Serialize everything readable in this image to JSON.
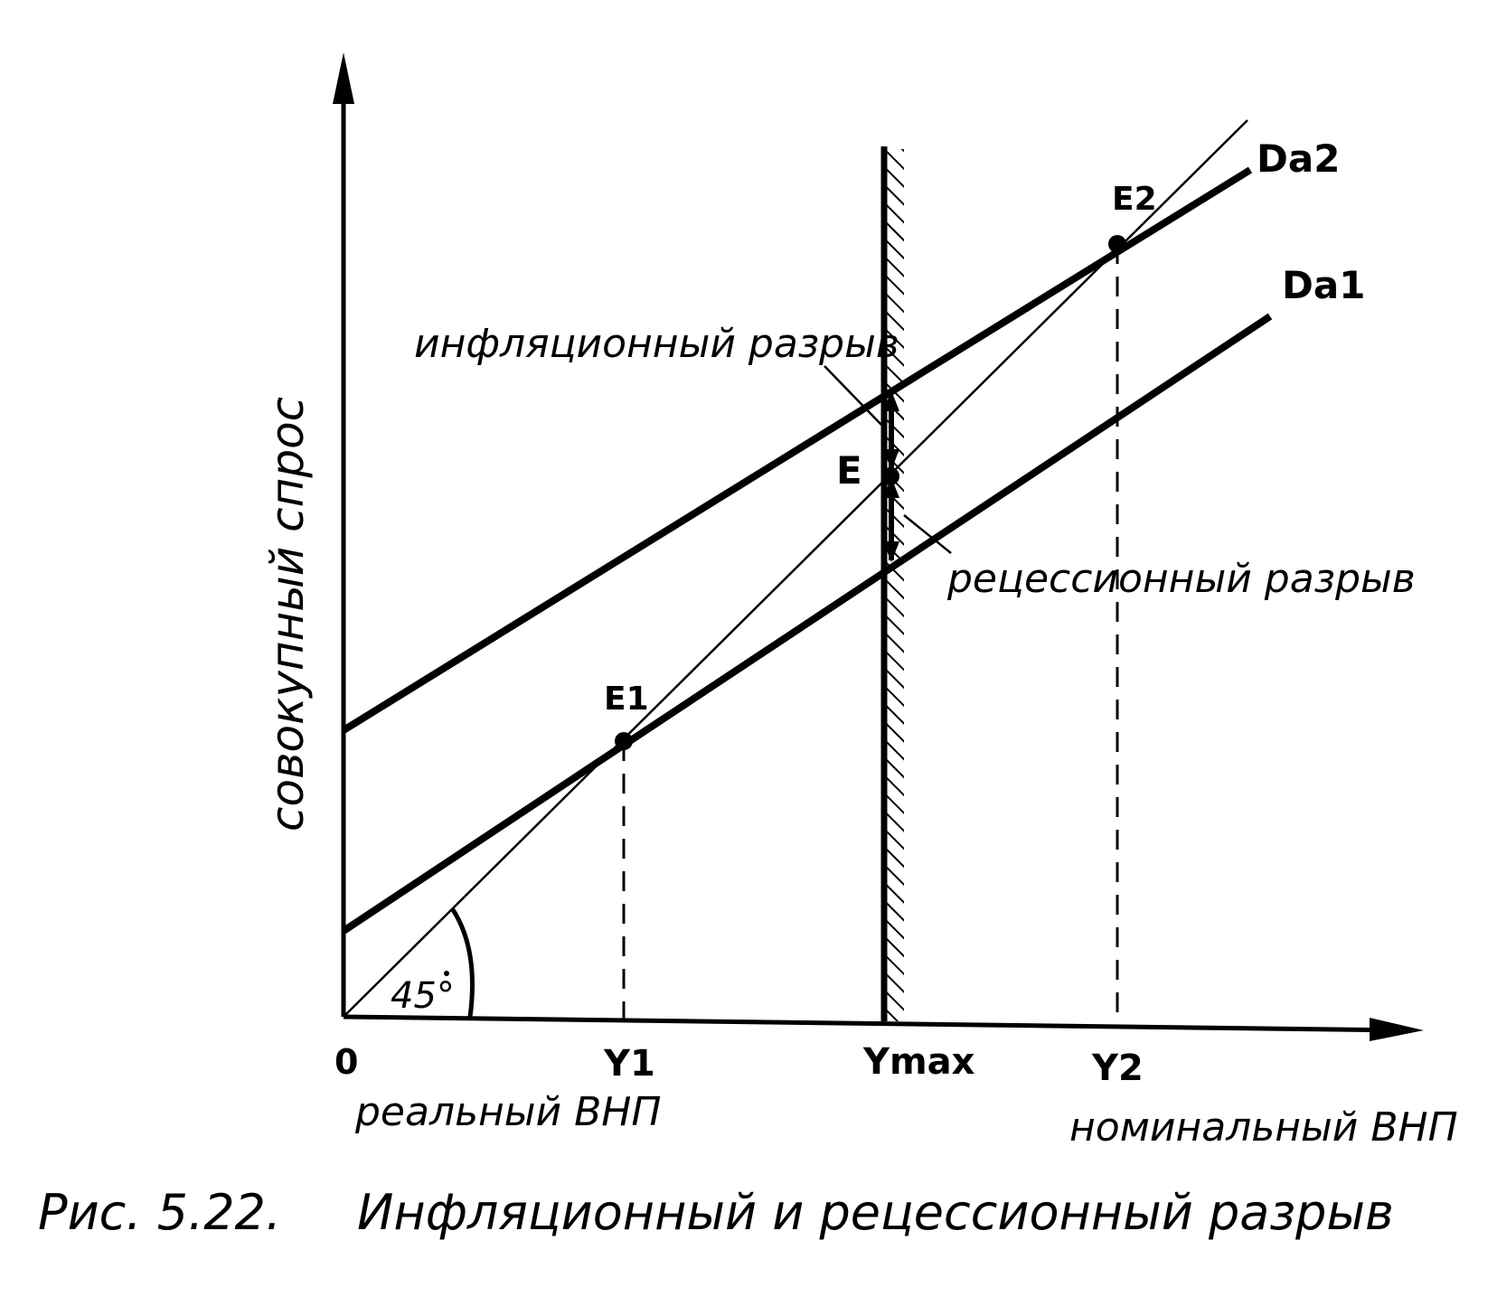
{
  "axes": {
    "y_label": "совокупный спрос",
    "origin": "0",
    "x_label_left": "реальный ВНП",
    "x_label_right": "номинальный ВНП",
    "tick_y1": "Y1",
    "tick_ymax": "Ymax",
    "tick_y2": "Y2"
  },
  "angle_label": "45°",
  "lines": {
    "da1": "Da1",
    "da2": "Da2"
  },
  "points": {
    "e1": "E1",
    "e": "E",
    "e2": "E2"
  },
  "gaps": {
    "inflationary": "инфляционный разрыв",
    "recessionary": "рецессионный разрыв"
  },
  "caption": {
    "number": "Рис. 5.22.",
    "title": "Инфляционный и рецессионный разрыв"
  }
}
